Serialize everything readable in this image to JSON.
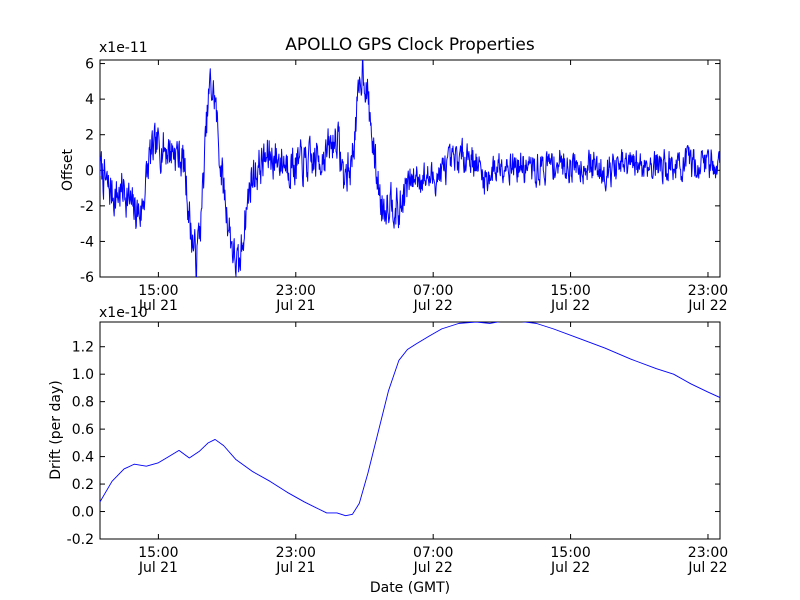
{
  "chart_data": [
    {
      "type": "line",
      "title": "APOLLO GPS Clock Properties",
      "ylabel": "Offset",
      "xlabel": "",
      "y_multiplier": "x1e-11",
      "ylim": [
        -6,
        6.2
      ],
      "yticks": [
        {
          "value": 6,
          "label": "6"
        },
        {
          "value": 4,
          "label": "4"
        },
        {
          "value": 2,
          "label": "2"
        },
        {
          "value": 0,
          "label": "0"
        },
        {
          "value": -2,
          "label": "-2"
        },
        {
          "value": -4,
          "label": "-4"
        },
        {
          "value": -6,
          "label": "-6"
        }
      ],
      "xlim_hours": [
        11.6,
        47.7
      ],
      "xticks": [
        {
          "hour": 15,
          "time": "15:00",
          "date": "Jul 21"
        },
        {
          "hour": 23,
          "time": "23:00",
          "date": "Jul 21"
        },
        {
          "hour": 31,
          "time": "07:00",
          "date": "Jul 22"
        },
        {
          "hour": 39,
          "time": "15:00",
          "date": "Jul 22"
        },
        {
          "hour": 47,
          "time": "23:00",
          "date": "Jul 22"
        }
      ],
      "color": "#0000ff",
      "series": [
        {
          "noise_seed": 7,
          "points": [
            [
              11.6,
              0.2
            ],
            [
              12.0,
              -0.9
            ],
            [
              12.5,
              -1.5
            ],
            [
              13.0,
              -1.0
            ],
            [
              13.5,
              -2.2
            ],
            [
              14.0,
              -2.4
            ],
            [
              14.5,
              0.8
            ],
            [
              15.0,
              1.4
            ],
            [
              15.5,
              1.2
            ],
            [
              16.0,
              1.1
            ],
            [
              16.5,
              0.4
            ],
            [
              16.9,
              -3.5
            ],
            [
              17.2,
              -5.0
            ],
            [
              17.5,
              -2.5
            ],
            [
              17.8,
              2.5
            ],
            [
              18.0,
              4.8
            ],
            [
              18.3,
              4.0
            ],
            [
              18.6,
              0.5
            ],
            [
              19.0,
              -2.5
            ],
            [
              19.4,
              -4.8
            ],
            [
              19.7,
              -5.7
            ],
            [
              20.0,
              -3.0
            ],
            [
              20.4,
              -0.5
            ],
            [
              21.0,
              0.4
            ],
            [
              21.5,
              0.8
            ],
            [
              22.0,
              0.6
            ],
            [
              23.0,
              0.3
            ],
            [
              24.0,
              0.4
            ],
            [
              25.0,
              1.2
            ],
            [
              25.4,
              2.0
            ],
            [
              25.8,
              -0.5
            ],
            [
              26.2,
              0.2
            ],
            [
              26.6,
              3.5
            ],
            [
              26.9,
              6.0
            ],
            [
              27.2,
              4.0
            ],
            [
              27.6,
              0.5
            ],
            [
              28.0,
              -2.0
            ],
            [
              28.6,
              -1.5
            ],
            [
              29.0,
              -2.5
            ],
            [
              29.4,
              -1.0
            ],
            [
              30.0,
              -0.3
            ],
            [
              31.0,
              -0.5
            ],
            [
              32.0,
              0.3
            ],
            [
              33.0,
              1.0
            ],
            [
              33.5,
              0.4
            ],
            [
              34.0,
              -0.5
            ],
            [
              35.0,
              0.5
            ],
            [
              36.0,
              0.2
            ],
            [
              37.0,
              0.0
            ],
            [
              38.0,
              0.4
            ],
            [
              39.0,
              0.3
            ],
            [
              40.0,
              0.3
            ],
            [
              41.0,
              0.0
            ],
            [
              42.0,
              0.2
            ],
            [
              43.0,
              0.3
            ],
            [
              44.0,
              0.4
            ],
            [
              45.0,
              0.2
            ],
            [
              46.0,
              0.3
            ],
            [
              47.0,
              0.5
            ],
            [
              47.7,
              0.4
            ]
          ]
        }
      ]
    },
    {
      "type": "line",
      "title": "",
      "ylabel": "Drift (per day)",
      "xlabel": "Date (GMT)",
      "y_multiplier": "x1e-10",
      "ylim": [
        -0.2,
        1.38
      ],
      "yticks": [
        {
          "value": 1.2,
          "label": "1.2"
        },
        {
          "value": 1.0,
          "label": "1.0"
        },
        {
          "value": 0.8,
          "label": "0.8"
        },
        {
          "value": 0.6,
          "label": "0.6"
        },
        {
          "value": 0.4,
          "label": "0.4"
        },
        {
          "value": 0.2,
          "label": "0.2"
        },
        {
          "value": 0.0,
          "label": "0.0"
        },
        {
          "value": -0.2,
          "label": "-0.2"
        }
      ],
      "xlim_hours": [
        11.6,
        47.7
      ],
      "xticks": [
        {
          "hour": 15,
          "time": "15:00",
          "date": "Jul 21"
        },
        {
          "hour": 23,
          "time": "23:00",
          "date": "Jul 21"
        },
        {
          "hour": 31,
          "time": "07:00",
          "date": "Jul 22"
        },
        {
          "hour": 39,
          "time": "15:00",
          "date": "Jul 22"
        },
        {
          "hour": 47,
          "time": "23:00",
          "date": "Jul 22"
        }
      ],
      "color": "#0000ff",
      "series": [
        {
          "points": [
            [
              11.6,
              0.07
            ],
            [
              12.3,
              0.22
            ],
            [
              13.0,
              0.31
            ],
            [
              13.6,
              0.345
            ],
            [
              14.3,
              0.33
            ],
            [
              15.0,
              0.355
            ],
            [
              15.6,
              0.4
            ],
            [
              16.2,
              0.445
            ],
            [
              16.8,
              0.39
            ],
            [
              17.4,
              0.44
            ],
            [
              17.9,
              0.5
            ],
            [
              18.3,
              0.525
            ],
            [
              18.8,
              0.48
            ],
            [
              19.5,
              0.38
            ],
            [
              20.5,
              0.29
            ],
            [
              21.5,
              0.22
            ],
            [
              22.5,
              0.14
            ],
            [
              23.5,
              0.07
            ],
            [
              24.3,
              0.02
            ],
            [
              24.8,
              -0.01
            ],
            [
              25.4,
              -0.01
            ],
            [
              25.9,
              -0.03
            ],
            [
              26.3,
              -0.02
            ],
            [
              26.7,
              0.06
            ],
            [
              27.2,
              0.28
            ],
            [
              27.8,
              0.58
            ],
            [
              28.4,
              0.88
            ],
            [
              29.0,
              1.1
            ],
            [
              29.5,
              1.18
            ],
            [
              30.0,
              1.22
            ],
            [
              30.8,
              1.28
            ],
            [
              31.5,
              1.33
            ],
            [
              32.5,
              1.37
            ],
            [
              33.5,
              1.38
            ],
            [
              34.3,
              1.37
            ],
            [
              35.2,
              1.39
            ],
            [
              36.0,
              1.385
            ],
            [
              37.0,
              1.37
            ],
            [
              38.0,
              1.33
            ],
            [
              39.5,
              1.26
            ],
            [
              41.0,
              1.19
            ],
            [
              42.5,
              1.11
            ],
            [
              44.0,
              1.04
            ],
            [
              45.0,
              1.0
            ],
            [
              46.0,
              0.93
            ],
            [
              47.0,
              0.87
            ],
            [
              47.7,
              0.83
            ]
          ]
        }
      ]
    }
  ]
}
